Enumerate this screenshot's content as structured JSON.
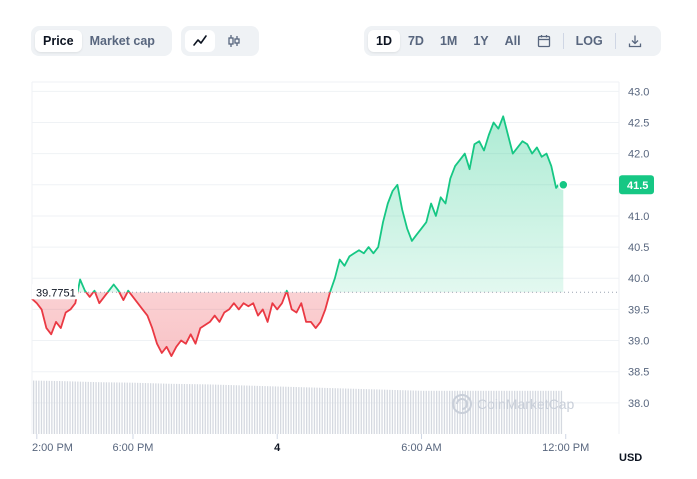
{
  "toolbar": {
    "metric_tabs": [
      {
        "label": "Price",
        "active": true
      },
      {
        "label": "Market cap",
        "active": false
      }
    ],
    "chart_type_icons": [
      {
        "icon": "line-chart-icon",
        "active": true
      },
      {
        "icon": "candlestick-icon",
        "active": false
      }
    ],
    "ranges": [
      {
        "label": "1D",
        "active": true
      },
      {
        "label": "7D",
        "active": false
      },
      {
        "label": "1M",
        "active": false
      },
      {
        "label": "1Y",
        "active": false
      },
      {
        "label": "All",
        "active": false
      }
    ],
    "calendar_icon": "calendar-icon",
    "log_label": "LOG",
    "download_icon": "download-icon"
  },
  "watermark": "CoinMarketCap",
  "currency_label": "USD",
  "colors": {
    "up": "#16c784",
    "down": "#ea3943",
    "accent": "#16c784"
  },
  "chart_data": {
    "type": "line",
    "y_ticks": [
      38.0,
      38.5,
      39.0,
      39.5,
      40.0,
      40.5,
      41.0,
      41.5,
      42.0,
      42.5,
      43.0
    ],
    "ylim": [
      37.5,
      43.15
    ],
    "x_ticks": [
      {
        "label": "2:00 PM",
        "bold": false,
        "hour": 14
      },
      {
        "label": "6:00 PM",
        "bold": false,
        "hour": 18
      },
      {
        "label": "4",
        "bold": true,
        "hour": 24
      },
      {
        "label": "6:00 AM",
        "bold": false,
        "hour": 30
      },
      {
        "label": "12:00 PM",
        "bold": false,
        "hour": 36
      }
    ],
    "xlim_hours": [
      13.8,
      37.8
    ],
    "reference_price": 39.7751,
    "reference_label": "39.7751",
    "last_price": 41.5,
    "last_price_label": "41.5",
    "price": [
      [
        13.8,
        39.67
      ],
      [
        14.0,
        39.6
      ],
      [
        14.2,
        39.5
      ],
      [
        14.4,
        39.2
      ],
      [
        14.6,
        39.1
      ],
      [
        14.8,
        39.3
      ],
      [
        15.0,
        39.2
      ],
      [
        15.2,
        39.45
      ],
      [
        15.4,
        39.5
      ],
      [
        15.6,
        39.6
      ],
      [
        15.8,
        39.98
      ],
      [
        16.0,
        39.8
      ],
      [
        16.2,
        39.7
      ],
      [
        16.4,
        39.8
      ],
      [
        16.6,
        39.6
      ],
      [
        16.8,
        39.7
      ],
      [
        17.0,
        39.8
      ],
      [
        17.2,
        39.9
      ],
      [
        17.4,
        39.8
      ],
      [
        17.6,
        39.65
      ],
      [
        17.8,
        39.8
      ],
      [
        18.0,
        39.7
      ],
      [
        18.2,
        39.6
      ],
      [
        18.4,
        39.5
      ],
      [
        18.6,
        39.4
      ],
      [
        18.8,
        39.2
      ],
      [
        19.0,
        38.95
      ],
      [
        19.2,
        38.8
      ],
      [
        19.4,
        38.9
      ],
      [
        19.6,
        38.75
      ],
      [
        19.8,
        38.9
      ],
      [
        20.0,
        39.0
      ],
      [
        20.2,
        38.95
      ],
      [
        20.4,
        39.1
      ],
      [
        20.6,
        38.95
      ],
      [
        20.8,
        39.2
      ],
      [
        21.0,
        39.25
      ],
      [
        21.2,
        39.3
      ],
      [
        21.4,
        39.4
      ],
      [
        21.6,
        39.3
      ],
      [
        21.8,
        39.45
      ],
      [
        22.0,
        39.5
      ],
      [
        22.2,
        39.6
      ],
      [
        22.4,
        39.5
      ],
      [
        22.6,
        39.6
      ],
      [
        22.8,
        39.55
      ],
      [
        23.0,
        39.6
      ],
      [
        23.2,
        39.4
      ],
      [
        23.4,
        39.5
      ],
      [
        23.6,
        39.3
      ],
      [
        23.8,
        39.6
      ],
      [
        24.0,
        39.5
      ],
      [
        24.2,
        39.6
      ],
      [
        24.4,
        39.8
      ],
      [
        24.6,
        39.5
      ],
      [
        24.8,
        39.45
      ],
      [
        25.0,
        39.6
      ],
      [
        25.2,
        39.3
      ],
      [
        25.4,
        39.3
      ],
      [
        25.6,
        39.2
      ],
      [
        25.8,
        39.3
      ],
      [
        26.0,
        39.5
      ],
      [
        26.2,
        39.78
      ],
      [
        26.4,
        40.0
      ],
      [
        26.6,
        40.3
      ],
      [
        26.8,
        40.2
      ],
      [
        27.0,
        40.35
      ],
      [
        27.2,
        40.4
      ],
      [
        27.4,
        40.45
      ],
      [
        27.6,
        40.4
      ],
      [
        27.8,
        40.5
      ],
      [
        28.0,
        40.4
      ],
      [
        28.2,
        40.5
      ],
      [
        28.4,
        40.9
      ],
      [
        28.6,
        41.2
      ],
      [
        28.8,
        41.4
      ],
      [
        29.0,
        41.5
      ],
      [
        29.2,
        41.1
      ],
      [
        29.4,
        40.8
      ],
      [
        29.6,
        40.6
      ],
      [
        29.8,
        40.7
      ],
      [
        30.0,
        40.8
      ],
      [
        30.2,
        40.9
      ],
      [
        30.4,
        41.2
      ],
      [
        30.6,
        41.0
      ],
      [
        30.8,
        41.3
      ],
      [
        31.0,
        41.2
      ],
      [
        31.2,
        41.6
      ],
      [
        31.4,
        41.8
      ],
      [
        31.6,
        41.9
      ],
      [
        31.8,
        42.0
      ],
      [
        32.0,
        41.75
      ],
      [
        32.2,
        42.15
      ],
      [
        32.4,
        42.2
      ],
      [
        32.6,
        42.05
      ],
      [
        32.8,
        42.3
      ],
      [
        33.0,
        42.5
      ],
      [
        33.2,
        42.4
      ],
      [
        33.4,
        42.6
      ],
      [
        33.6,
        42.3
      ],
      [
        33.8,
        42.0
      ],
      [
        34.0,
        42.1
      ],
      [
        34.2,
        42.2
      ],
      [
        34.4,
        42.15
      ],
      [
        34.6,
        42.0
      ],
      [
        34.8,
        42.1
      ],
      [
        35.0,
        41.95
      ],
      [
        35.2,
        42.0
      ],
      [
        35.4,
        41.8
      ],
      [
        35.6,
        41.45
      ],
      [
        35.8,
        41.55
      ],
      [
        35.9,
        41.5
      ]
    ],
    "volume": [
      [
        13.8,
        0.99
      ],
      [
        15.0,
        0.98
      ],
      [
        16.5,
        0.96
      ],
      [
        18.0,
        0.95
      ],
      [
        19.5,
        0.93
      ],
      [
        21.0,
        0.92
      ],
      [
        22.5,
        0.9
      ],
      [
        24.0,
        0.88
      ],
      [
        25.5,
        0.86
      ],
      [
        27.0,
        0.84
      ],
      [
        28.5,
        0.82
      ],
      [
        30.0,
        0.8
      ],
      [
        31.5,
        0.8
      ],
      [
        33.0,
        0.8
      ],
      [
        34.5,
        0.8
      ],
      [
        35.9,
        0.8
      ]
    ]
  }
}
